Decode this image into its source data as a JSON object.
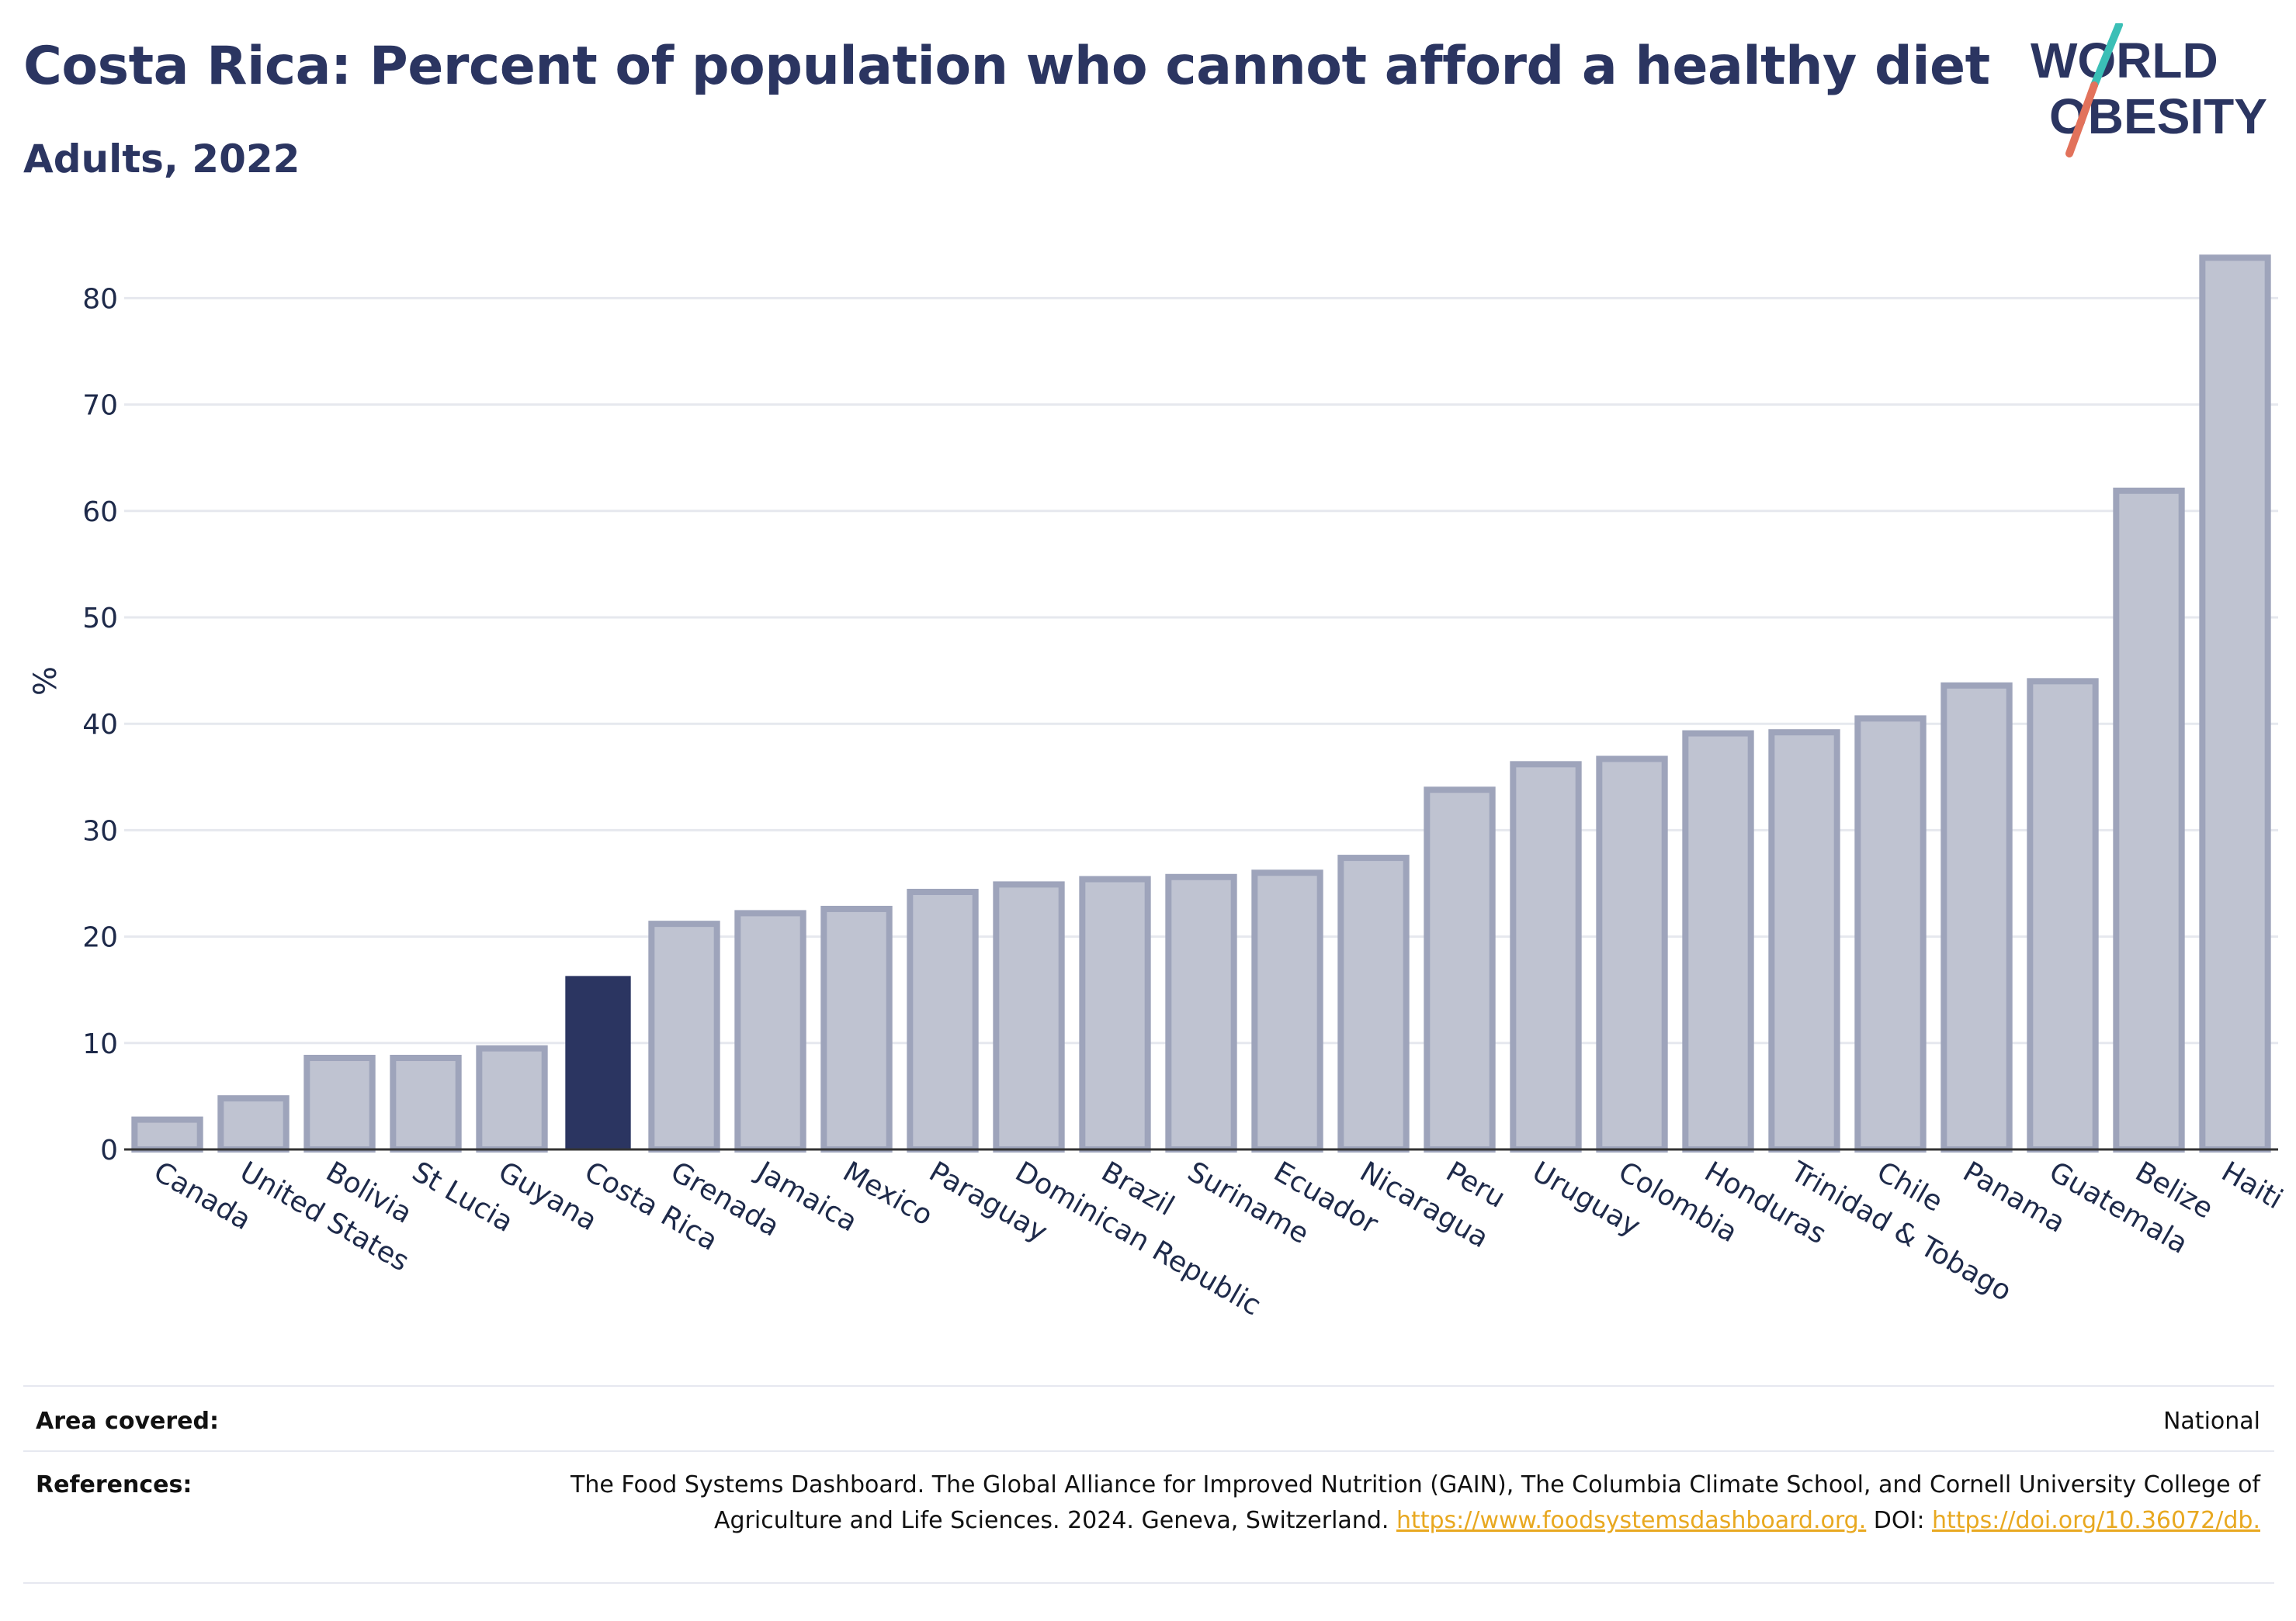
{
  "header": {
    "title": "Costa Rica: Percent of population who cannot afford a healthy diet",
    "subtitle": "Adults, 2022"
  },
  "logo": {
    "line1": "WORLD",
    "line2": "OBESITY",
    "slash_top_color": "#3bbfb6",
    "slash_bottom_color": "#e2725b"
  },
  "colors": {
    "highlight": "#2b3561",
    "bar": "#bfc3d1",
    "bar_border": "#9ea4bb",
    "grid": "#e6e8ee",
    "text": "#1e2a4a",
    "link": "#e8a820"
  },
  "chart_data": {
    "type": "bar",
    "title": "Costa Rica: Percent of population who cannot afford a healthy diet",
    "subtitle": "Adults, 2022",
    "xlabel": "",
    "ylabel": "%",
    "ylim": [
      0,
      85
    ],
    "yticks": [
      0,
      10,
      20,
      30,
      40,
      50,
      60,
      70,
      80
    ],
    "grid": true,
    "highlight": "Costa Rica",
    "categories": [
      "Canada",
      "United States",
      "Bolivia",
      "St Lucia",
      "Guyana",
      "Costa Rica",
      "Grenada",
      "Jamaica",
      "Mexico",
      "Paraguay",
      "Dominican Republic",
      "Brazil",
      "Suriname",
      "Ecuador",
      "Nicaragua",
      "Peru",
      "Uruguay",
      "Colombia",
      "Honduras",
      "Trinidad & Tobago",
      "Chile",
      "Panama",
      "Guatemala",
      "Belize",
      "Haiti"
    ],
    "values": [
      2.8,
      4.8,
      8.6,
      8.6,
      9.5,
      16.3,
      21.2,
      22.2,
      22.6,
      24.2,
      24.9,
      25.4,
      25.6,
      26.0,
      27.4,
      33.8,
      36.2,
      36.7,
      39.1,
      39.2,
      40.5,
      43.6,
      44.0,
      61.9,
      83.8
    ]
  },
  "footer": {
    "area_label": "Area covered:",
    "area_value": "National",
    "references_label": "References:",
    "references_text_1": "The Food Systems Dashboard. The Global Alliance for Improved Nutrition (GAIN), The Columbia Climate School, and Cornell University College of Agriculture and Life Sciences. 2024. Geneva, Switzerland. ",
    "references_link_1": "https://www.foodsystemsdashboard.org.",
    "references_text_2": " DOI: ",
    "references_link_2": "https://doi.org/10.36072/db."
  }
}
